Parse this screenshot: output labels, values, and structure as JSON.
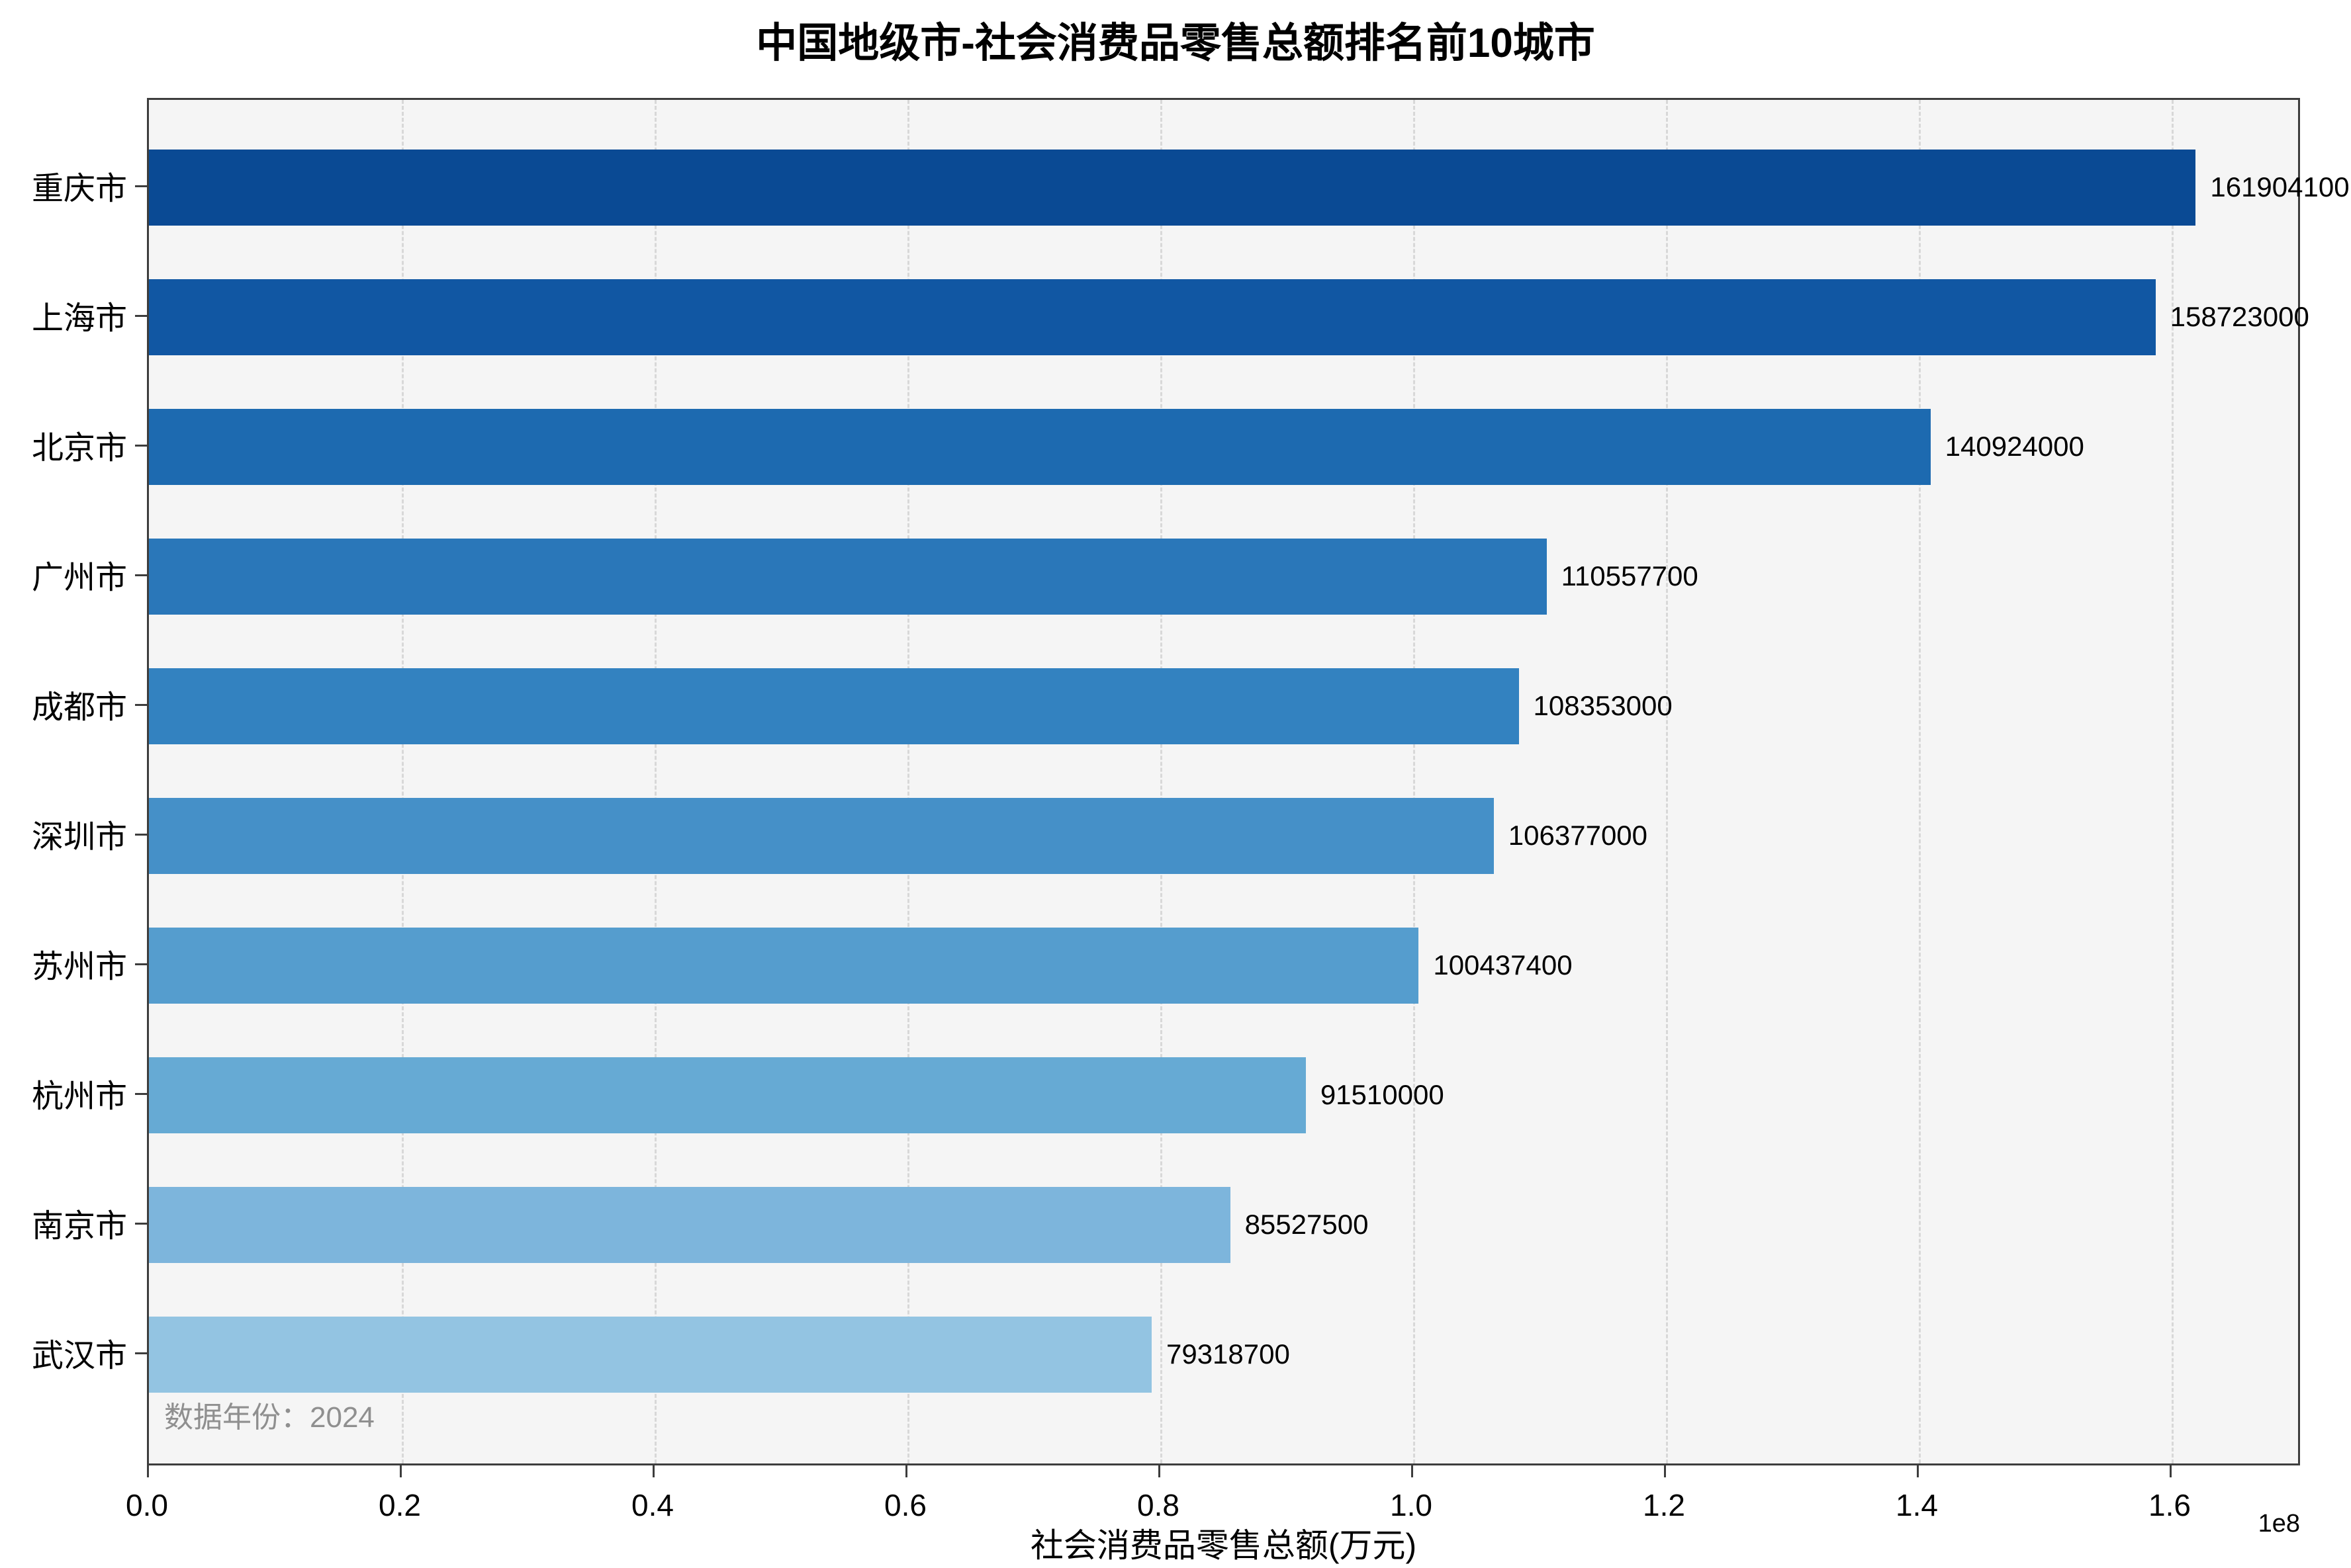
{
  "chart_data": {
    "type": "bar",
    "orientation": "horizontal",
    "title": "中国地级市-社会消费品零售总额排名前10城市",
    "xlabel": "社会消费品零售总额(万元)",
    "x_multiplier": "1e8",
    "annotation": "数据年份：2024",
    "xlim": [
      0,
      170000000
    ],
    "x_tick_labels": [
      "0.0",
      "0.2",
      "0.4",
      "0.6",
      "0.8",
      "1.0",
      "1.2",
      "1.4",
      "1.6"
    ],
    "x_tick_values": [
      0,
      20000000,
      40000000,
      60000000,
      80000000,
      100000000,
      120000000,
      140000000,
      160000000
    ],
    "grid": "vertical-dashed",
    "legend": "none",
    "categories": [
      "重庆市",
      "上海市",
      "北京市",
      "广州市",
      "成都市",
      "深圳市",
      "苏州市",
      "杭州市",
      "南京市",
      "武汉市"
    ],
    "values": [
      161904100,
      158723000,
      140924000,
      110557700,
      108353000,
      106377000,
      100437400,
      91510000,
      85527500,
      79318700
    ],
    "value_labels": [
      "161904100",
      "158723000",
      "140924000",
      "110557700",
      "108353000",
      "106377000",
      "100437400",
      "91510000",
      "85527500",
      "79318700"
    ],
    "bar_colors": [
      "#0a4a94",
      "#1157a3",
      "#1d6ab0",
      "#2a77b9",
      "#3382c0",
      "#4590c8",
      "#559dce",
      "#66aad4",
      "#7db5dc",
      "#93c4e2"
    ],
    "plot_bg_color": "#f5f5f5",
    "annotation_color": "#8f8f8f"
  }
}
